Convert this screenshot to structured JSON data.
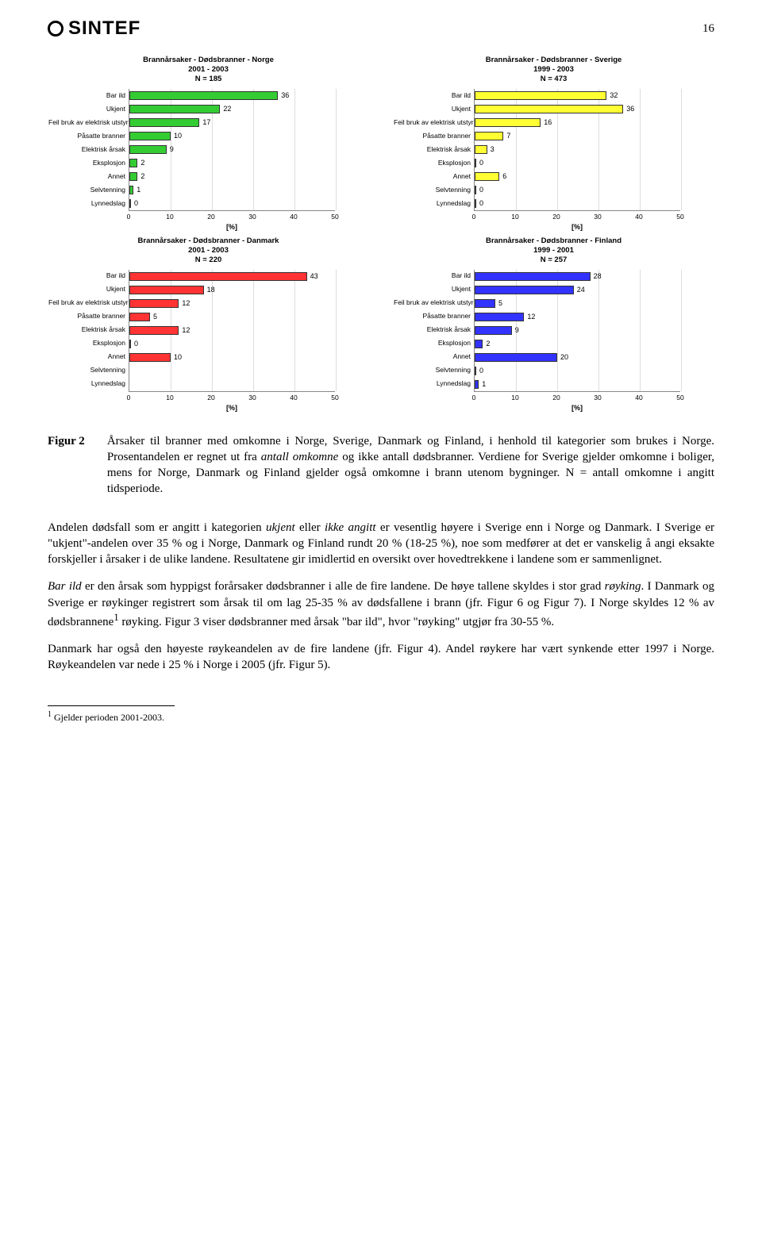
{
  "page_number": "16",
  "logo_text": "SINTEF",
  "chart_common": {
    "categories": [
      "Bar ild",
      "Ukjent",
      "Feil bruk av elektrisk utstyr",
      "Påsatte branner",
      "Elektrisk årsak",
      "Eksplosjon",
      "Annet",
      "Selvtenning",
      "Lynnedslag"
    ],
    "xlim": 50,
    "xtick_step": 10,
    "x_title": "[%]",
    "tick_fontsize": 8.5,
    "title_fontsize": 9.5
  },
  "charts": [
    {
      "title": "Brannårsaker - Dødsbranner - Norge\n2001 - 2003\nN = 185",
      "fill": "#33cc33",
      "values": [
        36,
        22,
        17,
        10,
        9,
        2,
        2,
        1,
        0
      ]
    },
    {
      "title": "Brannårsaker - Dødsbranner - Sverige\n1999 - 2003\nN = 473",
      "fill": "#ffff33",
      "values": [
        32,
        36,
        16,
        7,
        3,
        0,
        6,
        0,
        0
      ]
    },
    {
      "title": "Brannårsaker - Dødsbranner - Danmark\n2001 - 2003\nN = 220",
      "fill": "#ff3333",
      "values": [
        43,
        18,
        12,
        5,
        12,
        0,
        10,
        null,
        null
      ]
    },
    {
      "title": "Brannårsaker - Dødsbranner - Finland\n1999 - 2001\nN = 257",
      "fill": "#3333ff",
      "values": [
        28,
        24,
        5,
        12,
        9,
        2,
        20,
        0,
        1
      ]
    }
  ],
  "figure": {
    "label": "Figur 2",
    "text_parts": [
      {
        "t": "Årsaker til branner med omkomne i Norge, Sverige, Danmark og Finland, i henhold til kategorier som brukes i Norge. Prosentandelen er regnet ut fra "
      },
      {
        "t": "antall omkomne",
        "i": true
      },
      {
        "t": " og ikke antall dødsbranner. Verdiene for Sverige gjelder omkomne i boliger, mens for Norge, Danmark og Finland gjelder også omkomne i brann utenom bygninger. N = antall omkomne i angitt tidsperiode."
      }
    ]
  },
  "paragraphs": [
    [
      {
        "t": "Andelen dødsfall som er angitt i kategorien "
      },
      {
        "t": "ukjent",
        "i": true
      },
      {
        "t": " eller "
      },
      {
        "t": "ikke angitt",
        "i": true
      },
      {
        "t": " er vesentlig høyere i Sverige enn i Norge og Danmark. I Sverige er \"ukjent\"-andelen over 35 % og i Norge, Danmark og Finland rundt 20 % (18-25 %), noe som medfører at det er vanskelig å angi eksakte forskjeller i årsaker i de ulike landene. Resultatene gir imidlertid en oversikt over hovedtrekkene i landene som er sammenlignet."
      }
    ],
    [
      {
        "t": "Bar ild",
        "i": true
      },
      {
        "t": " er den årsak som hyppigst forårsaker dødsbranner i alle de fire landene. De høye tallene skyldes i stor grad "
      },
      {
        "t": "røyking",
        "i": true
      },
      {
        "t": ". I Danmark og Sverige er røykinger registrert som årsak til om lag 25-35 % av dødsfallene i brann (jfr. Figur 6 og Figur 7). I Norge skyldes 12 % av dødsbrannene"
      },
      {
        "t": "1",
        "sup": true
      },
      {
        "t": " røyking. Figur 3 viser dødsbranner med årsak \"bar ild\", hvor \"røyking\" utgjør fra 30-55 %."
      }
    ],
    [
      {
        "t": "Danmark har også den høyeste røykeandelen av de fire landene (jfr. Figur 4). Andel røykere har vært synkende etter 1997 i Norge. Røykeandelen var nede i 25 % i Norge i 2005 (jfr. Figur 5)."
      }
    ]
  ],
  "footnote": {
    "marker": "1",
    "text": " Gjelder perioden 2001-2003."
  }
}
